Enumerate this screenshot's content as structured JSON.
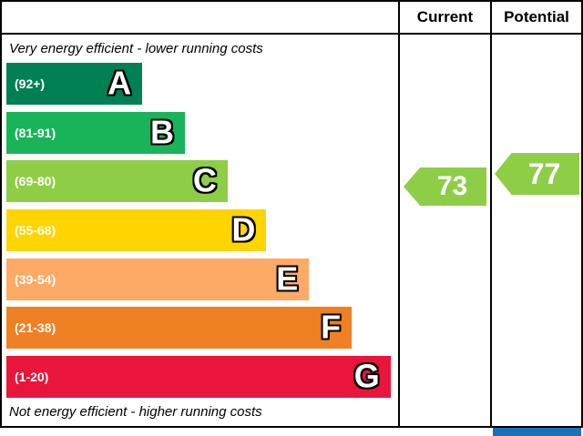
{
  "header": {
    "current_label": "Current",
    "potential_label": "Potential"
  },
  "chart_data": {
    "type": "bar",
    "subtype": "epc-energy-efficiency-rating",
    "top_caption": "Very energy efficient - lower running costs",
    "bottom_caption": "Not energy efficient - higher running costs",
    "bands": [
      {
        "letter": "A",
        "range": "(92+)",
        "color": "#008054",
        "width_pct": 35
      },
      {
        "letter": "B",
        "range": "(81-91)",
        "color": "#19b459",
        "width_pct": 46
      },
      {
        "letter": "C",
        "range": "(69-80)",
        "color": "#8dce46",
        "width_pct": 57
      },
      {
        "letter": "D",
        "range": "(55-68)",
        "color": "#ffd500",
        "width_pct": 67
      },
      {
        "letter": "E",
        "range": "(39-54)",
        "color": "#fcaa65",
        "width_pct": 78
      },
      {
        "letter": "F",
        "range": "(21-38)",
        "color": "#ef8023",
        "width_pct": 89
      },
      {
        "letter": "G",
        "range": "(1-20)",
        "color": "#e9153b",
        "width_pct": 99
      }
    ],
    "current": {
      "value": "73",
      "band": "C",
      "color": "#8dce46"
    },
    "potential": {
      "value": "77",
      "band": "C",
      "color": "#8dce46"
    }
  },
  "footer": {
    "blue_accent_color": "#1d70b8"
  }
}
